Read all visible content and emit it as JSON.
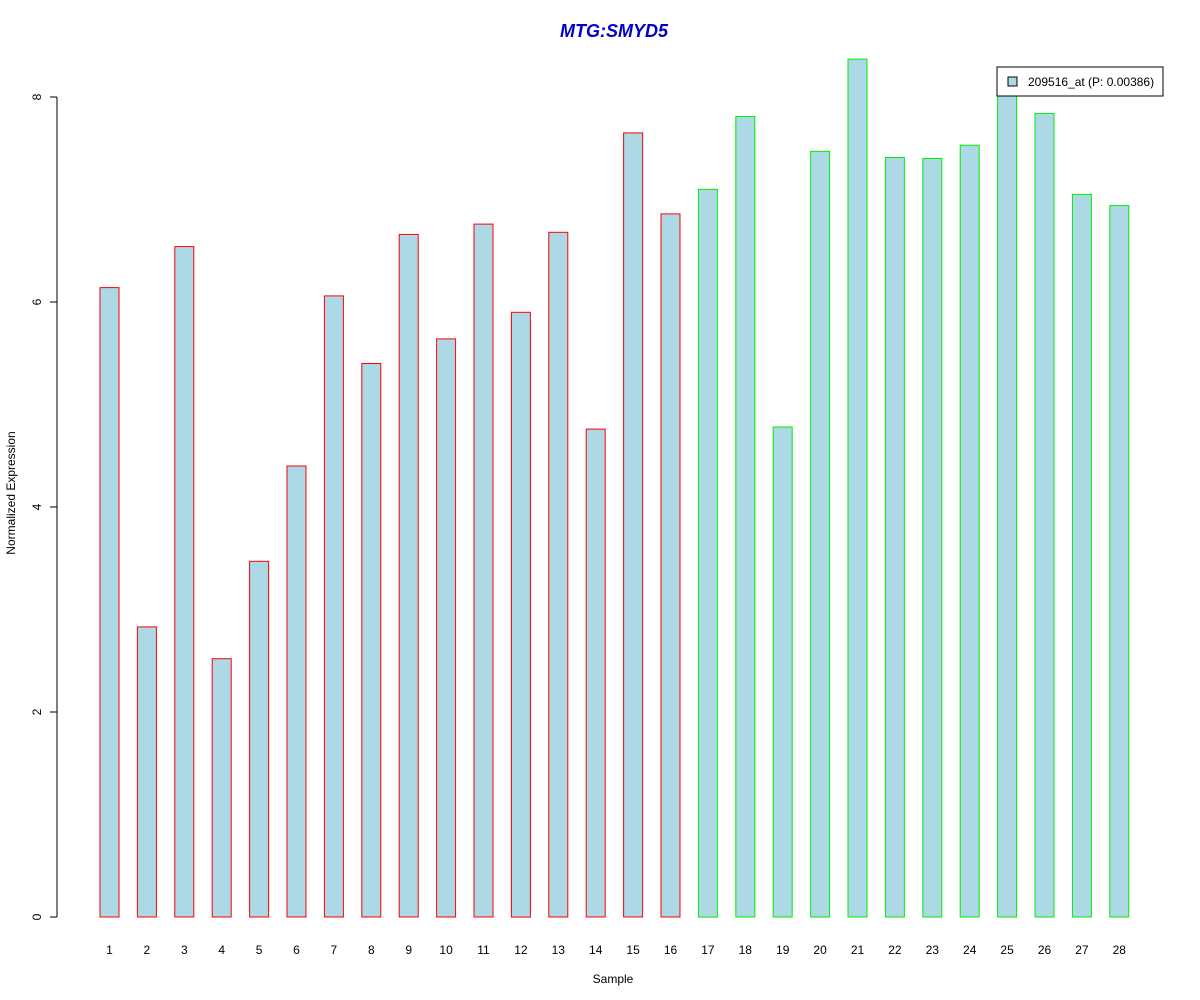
{
  "chart_data": {
    "type": "bar",
    "title": "MTG:SMYD5",
    "xlabel": "Sample",
    "ylabel": "Normalized Expression",
    "ylim": [
      0,
      8.3
    ],
    "yticks": [
      0,
      2,
      4,
      6,
      8
    ],
    "grid": false,
    "legend_position": "top-right",
    "categories": [
      "1",
      "2",
      "3",
      "4",
      "5",
      "6",
      "7",
      "8",
      "9",
      "10",
      "11",
      "12",
      "13",
      "14",
      "15",
      "16",
      "17",
      "18",
      "19",
      "20",
      "21",
      "22",
      "23",
      "24",
      "25",
      "26",
      "27",
      "28"
    ],
    "series": [
      {
        "name": "209516_at (P: 0.00386)",
        "values": [
          6.14,
          2.83,
          6.54,
          2.52,
          3.47,
          4.4,
          6.06,
          5.4,
          6.66,
          5.64,
          6.76,
          5.9,
          6.68,
          4.76,
          7.65,
          6.86,
          7.1,
          7.81,
          4.78,
          7.47,
          8.37,
          7.41,
          7.4,
          7.53,
          8.08,
          7.84,
          7.05,
          6.94
        ],
        "fill_color": "#ADD8E6",
        "group_border_colors": [
          "#FF0000",
          "#FF0000",
          "#FF0000",
          "#FF0000",
          "#FF0000",
          "#FF0000",
          "#FF0000",
          "#FF0000",
          "#FF0000",
          "#FF0000",
          "#FF0000",
          "#FF0000",
          "#FF0000",
          "#FF0000",
          "#FF0000",
          "#FF0000",
          "#00EE00",
          "#00EE00",
          "#00EE00",
          "#00EE00",
          "#00EE00",
          "#00EE00",
          "#00EE00",
          "#00EE00",
          "#00EE00",
          "#00EE00",
          "#00EE00",
          "#00EE00"
        ]
      }
    ],
    "colors": {
      "title": "#0000CC",
      "axis": "#000000",
      "legend_box_border": "#000000"
    }
  }
}
